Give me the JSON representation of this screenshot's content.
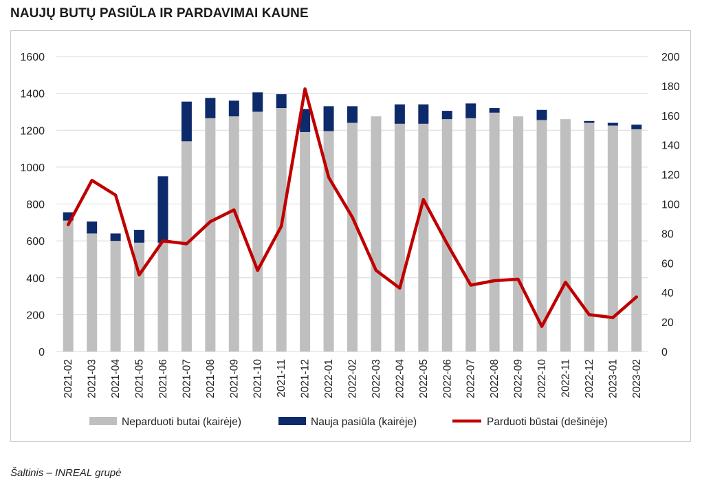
{
  "title": "NAUJŲ BUTŲ PASIŪLA IR PARDAVIMAI KAUNE",
  "source": "Šaltinis – INREAL grupė",
  "colors": {
    "unsold": "#bfbfbf",
    "new_supply": "#0d2a6b",
    "sold": "#c00000",
    "grid": "#d9d9d9"
  },
  "chart_data": {
    "type": "bar",
    "stacked": true,
    "categories": [
      "2021-02",
      "2021-03",
      "2021-04",
      "2021-05",
      "2021-06",
      "2021-07",
      "2021-08",
      "2021-09",
      "2021-10",
      "2021-11",
      "2021-12",
      "2022-01",
      "2022-02",
      "2022-03",
      "2022-04",
      "2022-05",
      "2022-06",
      "2022-07",
      "2022-08",
      "2022-09",
      "2022-10",
      "2022-11",
      "2022-12",
      "2023-01",
      "2023-02"
    ],
    "y_left": {
      "ylim": [
        0,
        1600
      ],
      "ticks": [
        0,
        200,
        400,
        600,
        800,
        1000,
        1200,
        1400,
        1600
      ]
    },
    "y_right": {
      "ylim": [
        0,
        200
      ],
      "ticks": [
        0,
        20,
        40,
        60,
        80,
        100,
        120,
        140,
        160,
        180,
        200
      ]
    },
    "grid": true,
    "legend_position": "bottom",
    "series": [
      {
        "name": "Neparduoti butai (kairėje)",
        "type": "bar",
        "axis": "left",
        "values": [
          710,
          640,
          600,
          590,
          590,
          1140,
          1265,
          1275,
          1300,
          1320,
          1190,
          1195,
          1240,
          1275,
          1235,
          1235,
          1260,
          1265,
          1295,
          1275,
          1255,
          1260,
          1240,
          1225,
          1205
        ]
      },
      {
        "name": "Nauja pasiūla (kairėje)",
        "type": "bar",
        "axis": "left",
        "values": [
          45,
          65,
          40,
          70,
          360,
          215,
          110,
          85,
          105,
          75,
          125,
          135,
          90,
          0,
          105,
          105,
          45,
          80,
          25,
          0,
          55,
          0,
          10,
          15,
          25
        ]
      },
      {
        "name": "Parduoti būstai (dešinėje)",
        "type": "line",
        "axis": "right",
        "values": [
          86,
          116,
          106,
          52,
          75,
          73,
          88,
          96,
          55,
          85,
          178,
          118,
          91,
          55,
          43,
          103,
          73,
          45,
          48,
          49,
          17,
          47,
          25,
          23,
          37
        ]
      }
    ]
  }
}
